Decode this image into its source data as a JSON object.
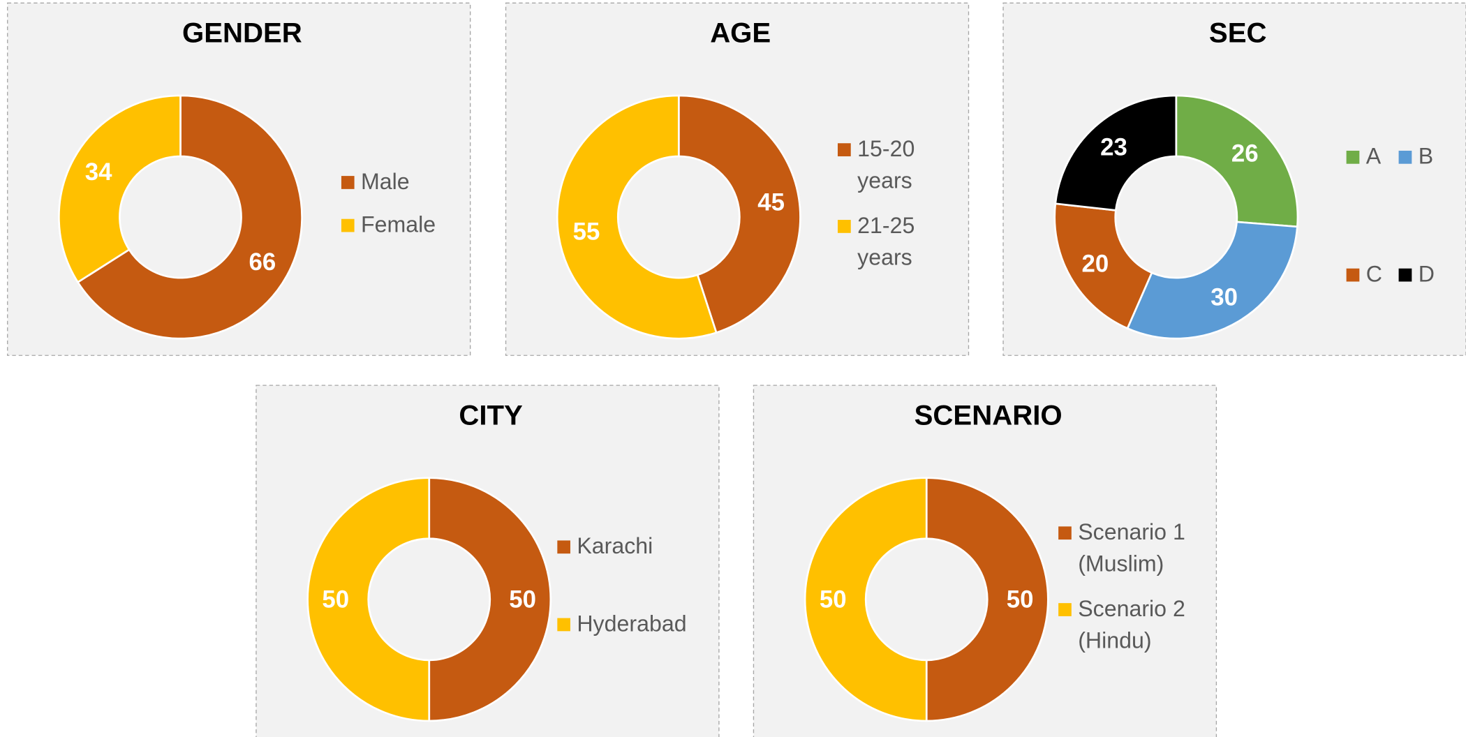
{
  "chart_data": [
    {
      "type": "pie",
      "donut": true,
      "title": "GENDER",
      "categories": [
        "Male",
        "Female"
      ],
      "values": [
        66,
        34
      ],
      "colors": [
        "#C55A11",
        "#FFC000"
      ]
    },
    {
      "type": "pie",
      "donut": true,
      "title": "AGE",
      "categories": [
        "15-20 years",
        "21-25 years"
      ],
      "values": [
        45,
        55
      ],
      "colors": [
        "#C55A11",
        "#FFC000"
      ]
    },
    {
      "type": "pie",
      "donut": true,
      "title": "SEC",
      "categories": [
        "A",
        "B",
        "C",
        "D"
      ],
      "values": [
        26,
        30,
        20,
        23
      ],
      "colors": [
        "#70AD47",
        "#5B9BD5",
        "#C55A11",
        "#000000"
      ]
    },
    {
      "type": "pie",
      "donut": true,
      "title": "CITY",
      "categories": [
        "Karachi",
        "Hyderabad"
      ],
      "values": [
        50,
        50
      ],
      "colors": [
        "#C55A11",
        "#FFC000"
      ]
    },
    {
      "type": "pie",
      "donut": true,
      "title": "SCENARIO",
      "categories": [
        "Scenario 1 (Muslim)",
        "Scenario 2 (Hindu)"
      ],
      "values": [
        50,
        50
      ],
      "colors": [
        "#C55A11",
        "#FFC000"
      ]
    }
  ]
}
